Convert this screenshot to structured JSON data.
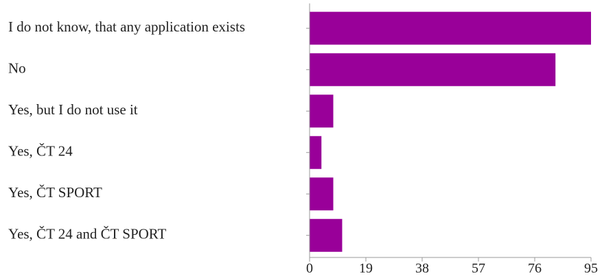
{
  "chart_data": {
    "type": "bar",
    "orientation": "horizontal",
    "categories": [
      "I do not know, that any application exists",
      "No",
      "Yes, but I do not use it",
      "Yes, ČT 24",
      "Yes, ČT SPORT",
      "Yes, ČT 24 and ČT SPORT"
    ],
    "values": [
      95,
      83,
      8,
      4,
      8,
      11
    ],
    "xlim": [
      0,
      95
    ],
    "xticks": [
      "0",
      "19",
      "38",
      "57",
      "76",
      "95"
    ],
    "title": "",
    "xlabel": "",
    "ylabel": "",
    "grid": false,
    "legend": "none",
    "bar_color": "#990099"
  }
}
